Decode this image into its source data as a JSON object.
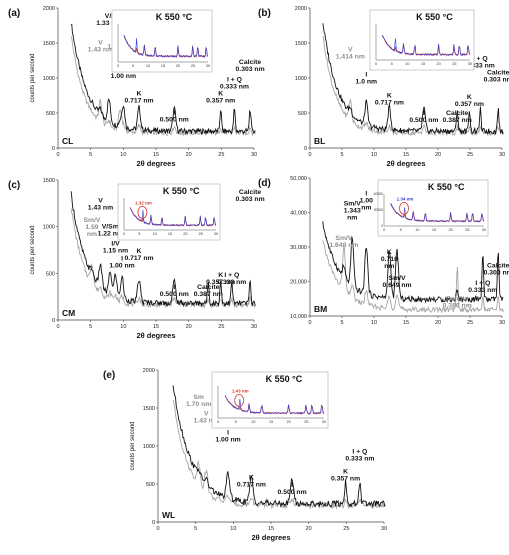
{
  "colors": {
    "dark": "#111111",
    "light": "#a6a6a6",
    "inset_blue": "#2b3bd6",
    "inset_red": "#c0392b",
    "inset_pink": "#e8a0b4",
    "highlight_red": "#d9352b"
  },
  "chart_data": [
    {
      "type": "line",
      "panel": "(a)",
      "sample": "CL",
      "xlabel": "2θ degrees",
      "ylabel": "counts per second",
      "xlim": [
        0,
        30
      ],
      "ylim": [
        0,
        2000
      ],
      "x_ticks": [
        "0",
        "5",
        "10",
        "15",
        "20",
        "25",
        "30"
      ],
      "y_ticks": [
        "0",
        "500",
        "1000",
        "1500",
        "2000"
      ],
      "inset_title": "K 550 °C",
      "inset_x_ticks": [
        "0",
        "5",
        "10",
        "15",
        "20",
        "25",
        "30"
      ],
      "annotations": [
        {
          "text": [
            "V",
            "1.43 nm"
          ],
          "x": 6.5,
          "y": 1480,
          "tone": "light"
        },
        {
          "text": [
            "V/I",
            "1.33 nm"
          ],
          "x": 7.8,
          "y": 1860,
          "tone": "dark"
        },
        {
          "text": [
            "I/V",
            "1.10 nm"
          ],
          "x": 9.5,
          "y": 1520,
          "tone": "light"
        },
        {
          "text": [
            "I",
            "1.00 nm"
          ],
          "x": 10.0,
          "y": 1100,
          "tone": "dark"
        },
        {
          "text": [
            "K",
            "0.717 nm"
          ],
          "x": 12.4,
          "y": 750,
          "tone": "dark"
        },
        {
          "text": [
            "I",
            "0.500 nm"
          ],
          "x": 17.8,
          "y": 480,
          "tone": "dark"
        },
        {
          "text": [
            "K",
            "0.357 nm"
          ],
          "x": 24.9,
          "y": 750,
          "tone": "dark"
        },
        {
          "text": [
            "I + Q",
            "0.333 nm"
          ],
          "x": 27.0,
          "y": 950,
          "tone": "dark"
        },
        {
          "text": [
            "Calcite",
            "0.303 nm"
          ],
          "x": 29.4,
          "y": 1200,
          "tone": "dark"
        }
      ]
    },
    {
      "type": "line",
      "panel": "(b)",
      "sample": "BL",
      "xlabel": "2θ degrees",
      "ylabel": "",
      "xlim": [
        0,
        30
      ],
      "ylim": [
        0,
        2000
      ],
      "x_ticks": [
        "0",
        "5",
        "10",
        "15",
        "20",
        "25",
        "30"
      ],
      "y_ticks": [
        "0",
        "500",
        "1000",
        "1500",
        "2000"
      ],
      "inset_title": "K 550 °C",
      "inset_x_ticks": [
        "0",
        "5",
        "10",
        "15",
        "20",
        "25",
        "30"
      ],
      "annotations": [
        {
          "text": [
            "V",
            "1.414 nm"
          ],
          "x": 6.3,
          "y": 1380,
          "tone": "light"
        },
        {
          "text": [
            "I",
            "1.0 nm"
          ],
          "x": 8.8,
          "y": 1020,
          "tone": "dark"
        },
        {
          "text": [
            "K",
            "0.717 nm"
          ],
          "x": 12.4,
          "y": 720,
          "tone": "dark"
        },
        {
          "text": [
            "I",
            "0.500 nm"
          ],
          "x": 17.8,
          "y": 470,
          "tone": "dark"
        },
        {
          "text": [
            "Calcite",
            "0.387 nm"
          ],
          "x": 23.0,
          "y": 470,
          "tone": "dark"
        },
        {
          "text": [
            "K",
            "0.357 nm"
          ],
          "x": 24.9,
          "y": 700,
          "tone": "dark"
        },
        {
          "text": [
            "I + Q",
            "0.333 nm"
          ],
          "x": 26.6,
          "y": 1250,
          "tone": "dark"
        },
        {
          "text": [
            "Calcite",
            "0.303 nm"
          ],
          "x": 29.4,
          "y": 1050,
          "tone": "dark"
        }
      ]
    },
    {
      "type": "line",
      "panel": "(c)",
      "sample": "CM",
      "xlabel": "2θ degrees",
      "ylabel": "counts per second",
      "xlim": [
        0,
        30
      ],
      "ylim": [
        0,
        1500
      ],
      "x_ticks": [
        "0",
        "5",
        "10",
        "15",
        "20",
        "25",
        "30"
      ],
      "y_ticks": [
        "0",
        "500",
        "1000",
        "1500"
      ],
      "inset_title": "K 550 °C",
      "inset_highlight": "1.32 nm",
      "inset_x_ticks": [
        "0",
        "5",
        "10",
        "15",
        "20",
        "25",
        "30"
      ],
      "annotations": [
        {
          "text": [
            "Sm/V",
            "1.59",
            "nm"
          ],
          "x": 5.2,
          "y": 1050,
          "tone": "light"
        },
        {
          "text": [
            "V",
            "1.43 nm"
          ],
          "x": 6.5,
          "y": 1260,
          "tone": "dark"
        },
        {
          "text": [
            "V/Sm",
            "1.22 nm"
          ],
          "x": 8.0,
          "y": 980,
          "tone": "dark"
        },
        {
          "text": [
            "I/V",
            "1.15 nm"
          ],
          "x": 8.8,
          "y": 800,
          "tone": "dark"
        },
        {
          "text": [
            "I",
            "1.00 nm"
          ],
          "x": 9.8,
          "y": 640,
          "tone": "dark"
        },
        {
          "text": [
            "K",
            "0.717 nm"
          ],
          "x": 12.4,
          "y": 720,
          "tone": "dark"
        },
        {
          "text": [
            "I",
            "0.500 nm"
          ],
          "x": 17.8,
          "y": 330,
          "tone": "dark"
        },
        {
          "text": [
            "K",
            "0.357 nm"
          ],
          "x": 24.9,
          "y": 460,
          "tone": "dark"
        },
        {
          "text": [
            "Calcite",
            "0.387 nm"
          ],
          "x": 23.0,
          "y": 330,
          "tone": "dark"
        },
        {
          "text": [
            "I + Q",
            "0.333 nm"
          ],
          "x": 26.6,
          "y": 460,
          "tone": "dark"
        },
        {
          "text": [
            "Calcite",
            "0.303 nm"
          ],
          "x": 29.4,
          "y": 1350,
          "tone": "dark"
        }
      ]
    },
    {
      "type": "line",
      "panel": "(d)",
      "sample": "BM",
      "xlabel": "",
      "ylabel": "",
      "xlim": [
        0,
        30
      ],
      "ylim": [
        10000,
        50000
      ],
      "x_ticks": [
        "0",
        "5",
        "10",
        "15",
        "20",
        "25",
        "30"
      ],
      "y_ticks": [
        "10,000",
        "20,000",
        "30,000",
        "40,000",
        "50,000"
      ],
      "inset_title": "K 550 °C",
      "inset_highlight": "1.34 nm",
      "inset_x_ticks": [
        "0",
        "5",
        "10",
        "15",
        "20",
        "25",
        "30"
      ],
      "inset_y_ticks": [
        "0",
        "20000",
        "40000"
      ],
      "annotations": [
        {
          "text": [
            "Sm/V",
            "1.648 nm"
          ],
          "x": 5.3,
          "y": 32000,
          "tone": "light"
        },
        {
          "text": [
            "Sm/V",
            "1.343",
            "nm"
          ],
          "x": 6.6,
          "y": 42000,
          "tone": "dark"
        },
        {
          "text": [
            "I",
            "1.00",
            "nm"
          ],
          "x": 8.8,
          "y": 45000,
          "tone": "dark"
        },
        {
          "text": [
            "K",
            "0.710",
            "nm"
          ],
          "x": 12.4,
          "y": 28000,
          "tone": "dark"
        },
        {
          "text": [
            "Sm/V",
            "0.649 nm"
          ],
          "x": 13.6,
          "y": 20500,
          "tone": "dark"
        },
        {
          "text": [
            "Calcite",
            "0.303 nm"
          ],
          "x": 29.4,
          "y": 24000,
          "tone": "dark"
        },
        {
          "text": [
            "I + Q",
            "0.333 nm"
          ],
          "x": 27.0,
          "y": 19000,
          "tone": "dark"
        },
        {
          "text": [
            "Calcite",
            "0.386 nm"
          ],
          "x": 23.0,
          "y": 14500,
          "tone": "light"
        }
      ]
    },
    {
      "type": "line",
      "panel": "(e)",
      "sample": "WL",
      "xlabel": "2θ degrees",
      "ylabel": "counts per second",
      "xlim": [
        0,
        30
      ],
      "ylim": [
        0,
        2000
      ],
      "x_ticks": [
        "0",
        "5",
        "10",
        "15",
        "20",
        "25",
        "30"
      ],
      "y_ticks": [
        "0",
        "500",
        "1000",
        "1500",
        "2000"
      ],
      "inset_title": "K 550 °C",
      "inset_highlight": "1.43 nm",
      "inset_x_ticks": [
        "0",
        "5",
        "10",
        "15",
        "20",
        "25",
        "30"
      ],
      "annotations": [
        {
          "text": [
            "Sm",
            "1.70 nm"
          ],
          "x": 5.4,
          "y": 1620,
          "tone": "light"
        },
        {
          "text": [
            "V",
            "1.43 nm"
          ],
          "x": 6.4,
          "y": 1400,
          "tone": "light"
        },
        {
          "text": [
            "I",
            "1.00 nm"
          ],
          "x": 9.3,
          "y": 1150,
          "tone": "dark"
        },
        {
          "text": [
            "K",
            "0.717 nm"
          ],
          "x": 12.4,
          "y": 560,
          "tone": "dark"
        },
        {
          "text": [
            "I",
            "0.500 nm"
          ],
          "x": 17.8,
          "y": 460,
          "tone": "dark"
        },
        {
          "text": [
            "K",
            "0.357 nm"
          ],
          "x": 24.9,
          "y": 640,
          "tone": "dark"
        },
        {
          "text": [
            "I + Q",
            "0.333 nm"
          ],
          "x": 26.8,
          "y": 900,
          "tone": "dark"
        }
      ]
    }
  ]
}
